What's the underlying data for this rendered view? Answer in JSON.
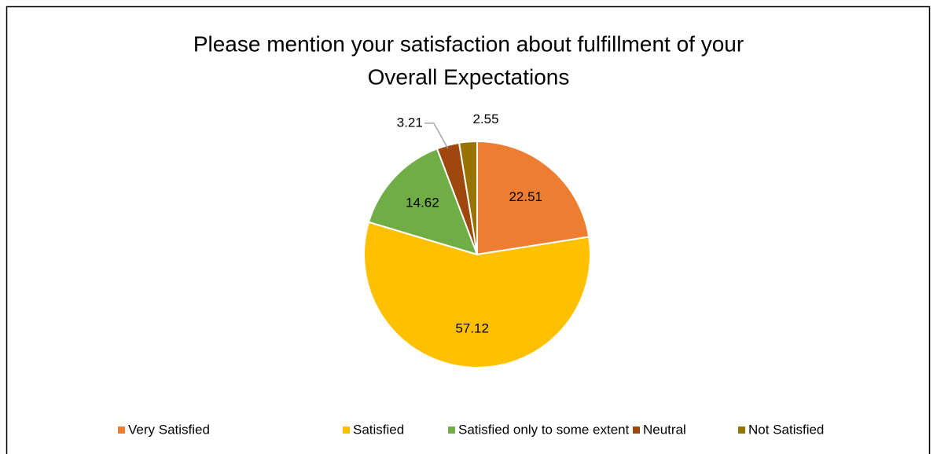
{
  "chart_data": {
    "type": "pie",
    "title": [
      "Please mention your  satisfaction about fulfillment of your",
      "Overall Expectations"
    ],
    "categories": [
      "Very Satisfied",
      "Satisfied",
      "Satisfied only to some extent",
      "Neutral",
      "Not Satisfied"
    ],
    "values": [
      22.51,
      57.12,
      14.62,
      3.21,
      2.55
    ],
    "colors": [
      "#ed7d31",
      "#ffc000",
      "#70ad47",
      "#9e480e",
      "#997300"
    ],
    "legend": "bottom"
  }
}
